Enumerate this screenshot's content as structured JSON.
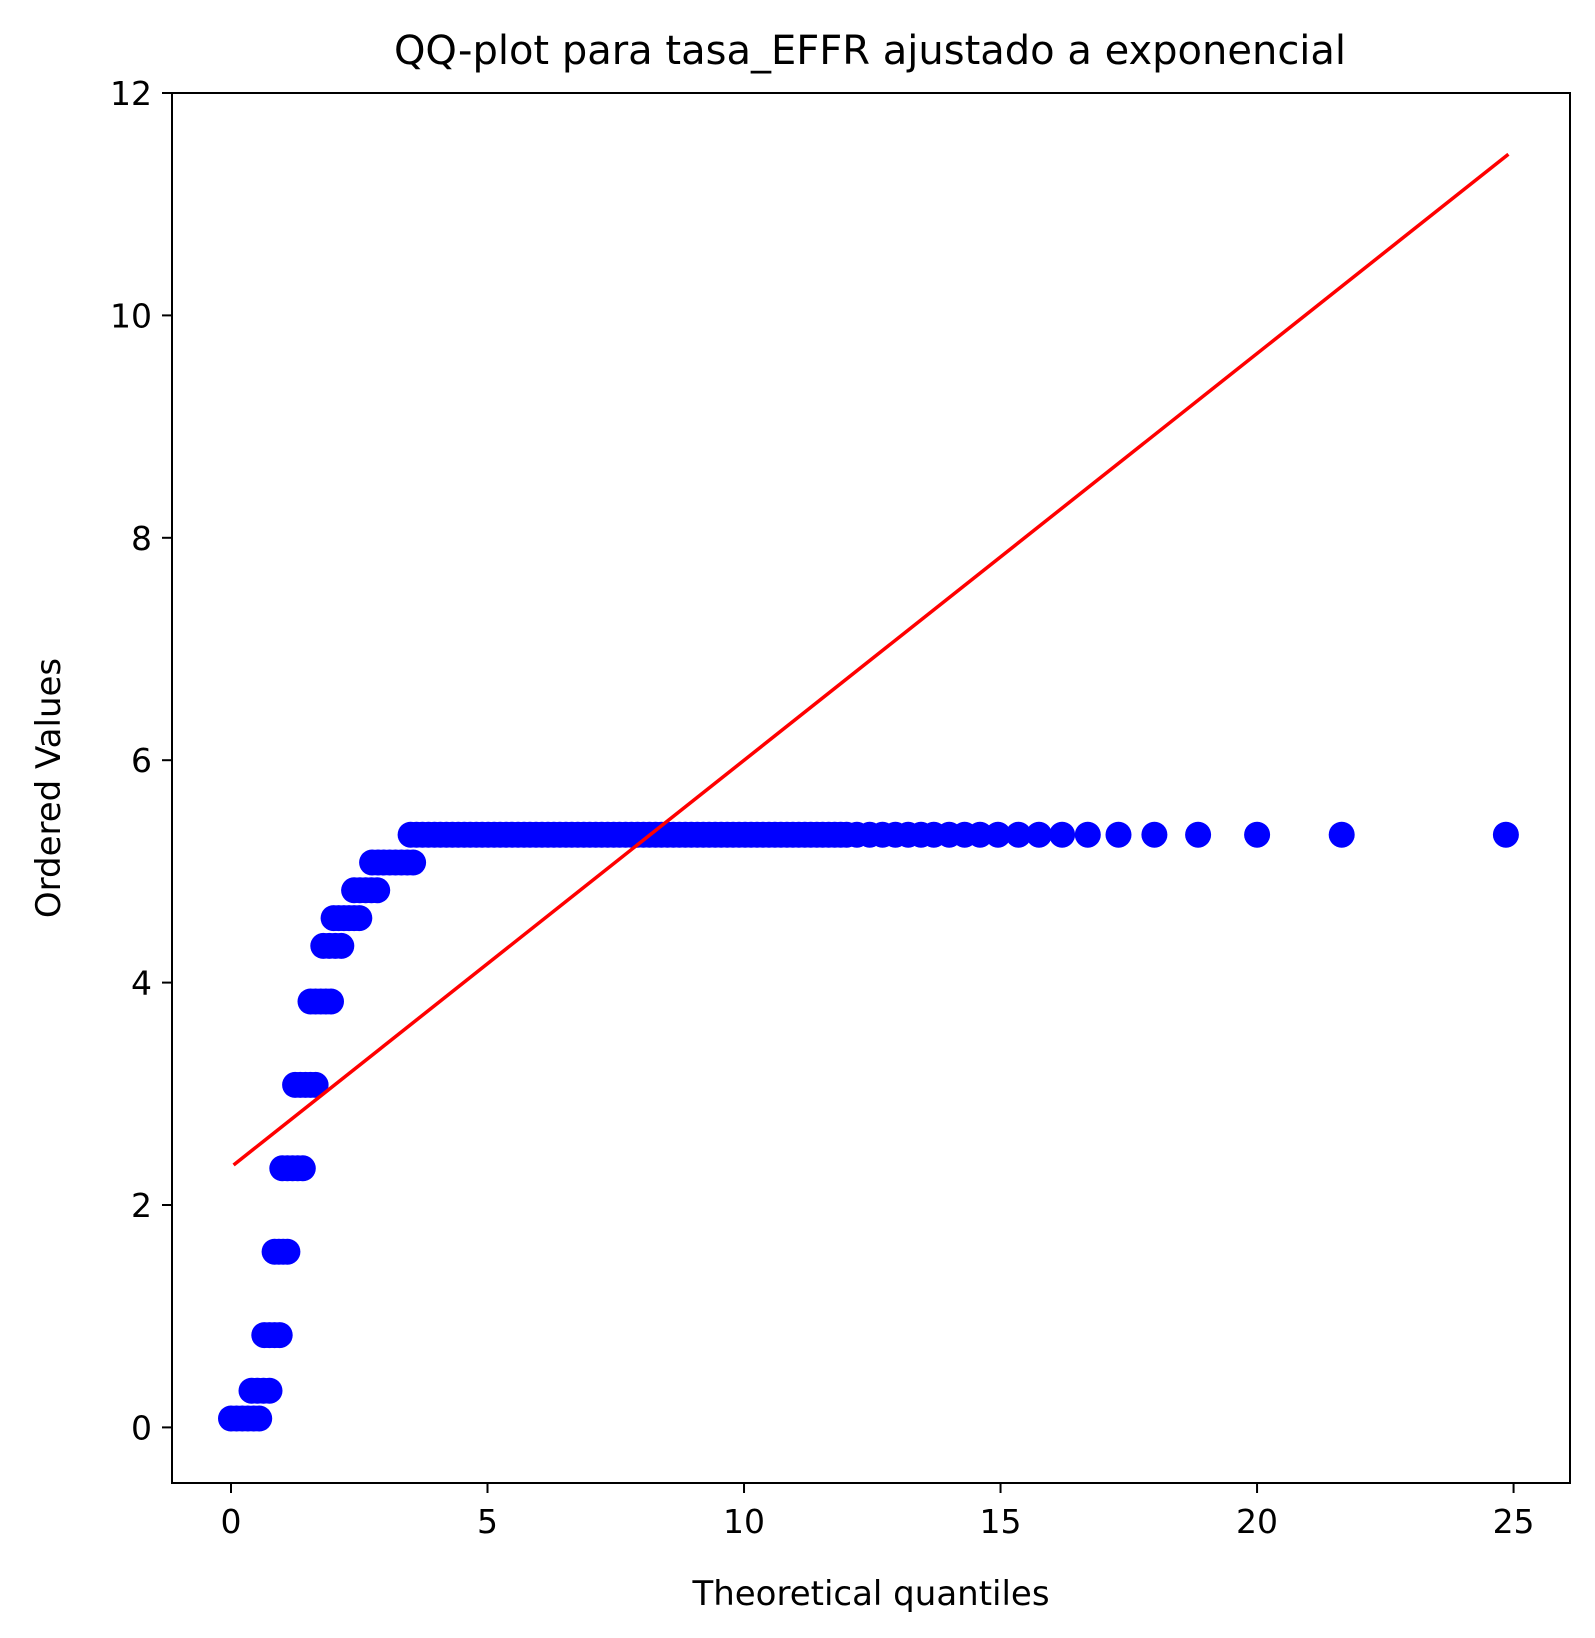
{
  "chart_data": {
    "type": "scatter",
    "title": "QQ-plot para tasa_EFFR ajustado a exponencial",
    "xlabel": "Theoretical quantiles",
    "ylabel": "Ordered Values",
    "xlim": [
      -1.15,
      26.1
    ],
    "ylim": [
      -0.5,
      12
    ],
    "xticks": [
      0,
      5,
      10,
      15,
      20,
      25
    ],
    "yticks": [
      0,
      2,
      4,
      6,
      8,
      10,
      12
    ],
    "grid": false,
    "legend": "none",
    "marker_color": "#0000ff",
    "line_color": "#ff0000",
    "series": [
      {
        "kind": "points",
        "steps": [
          {
            "y": 0.08,
            "x_from": 0.0,
            "x_to": 0.55
          },
          {
            "y": 0.33,
            "x_from": 0.4,
            "x_to": 0.75
          },
          {
            "y": 0.83,
            "x_from": 0.65,
            "x_to": 0.95
          },
          {
            "y": 1.58,
            "x_from": 0.85,
            "x_to": 1.1
          },
          {
            "y": 2.33,
            "x_from": 1.0,
            "x_to": 1.4
          },
          {
            "y": 3.08,
            "x_from": 1.25,
            "x_to": 1.65
          },
          {
            "y": 3.83,
            "x_from": 1.55,
            "x_to": 1.95
          },
          {
            "y": 4.33,
            "x_from": 1.8,
            "x_to": 2.15
          },
          {
            "y": 4.58,
            "x_from": 2.0,
            "x_to": 2.5
          },
          {
            "y": 4.83,
            "x_from": 2.4,
            "x_to": 2.85
          },
          {
            "y": 5.08,
            "x_from": 2.75,
            "x_to": 3.55
          },
          {
            "y": 5.33,
            "x_from": 3.5,
            "x_to": 12.0
          }
        ],
        "tail": [
          {
            "x": 12.2,
            "y": 5.33
          },
          {
            "x": 12.45,
            "y": 5.33
          },
          {
            "x": 12.7,
            "y": 5.33
          },
          {
            "x": 12.95,
            "y": 5.33
          },
          {
            "x": 13.2,
            "y": 5.33
          },
          {
            "x": 13.45,
            "y": 5.33
          },
          {
            "x": 13.7,
            "y": 5.33
          },
          {
            "x": 14.0,
            "y": 5.33
          },
          {
            "x": 14.3,
            "y": 5.33
          },
          {
            "x": 14.6,
            "y": 5.33
          },
          {
            "x": 14.95,
            "y": 5.33
          },
          {
            "x": 15.35,
            "y": 5.33
          },
          {
            "x": 15.75,
            "y": 5.33
          },
          {
            "x": 16.2,
            "y": 5.33
          },
          {
            "x": 16.7,
            "y": 5.33
          },
          {
            "x": 17.3,
            "y": 5.33
          },
          {
            "x": 18.0,
            "y": 5.33
          },
          {
            "x": 18.85,
            "y": 5.33
          },
          {
            "x": 20.0,
            "y": 5.33
          },
          {
            "x": 21.65,
            "y": 5.33
          },
          {
            "x": 24.85,
            "y": 5.33
          }
        ]
      },
      {
        "kind": "fit-line",
        "x": [
          0.05,
          24.9
        ],
        "y": [
          2.36,
          11.45
        ]
      }
    ]
  }
}
